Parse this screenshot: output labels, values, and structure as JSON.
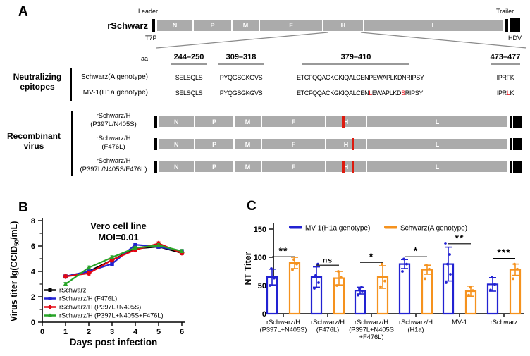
{
  "panel_labels": {
    "a": "A",
    "b": "B",
    "c": "C"
  },
  "colors": {
    "genome_gray": "#ABABAB",
    "mutation_red": "#DD1A0E",
    "epitope_red": "#E8000B",
    "series_black": "#000000",
    "series_blue": "#2222D2",
    "series_red": "#E30613",
    "series_green": "#28A428",
    "bar_blue": "#2222D2",
    "bar_orange": "#F5921E"
  },
  "genome_map": {
    "virus_label": "rSchwarz",
    "leader": "Leader",
    "t7p": "T7P",
    "trailer": "Trailer",
    "hdv": "HDV",
    "segments": [
      "N",
      "P",
      "M",
      "F",
      "H",
      "L"
    ]
  },
  "epitopes": {
    "section_lines": [
      "Neutralizing",
      "epitopes"
    ],
    "aa": "aa",
    "positions": [
      "244–250",
      "309–318",
      "379–410",
      "473–477"
    ],
    "rows": [
      {
        "name": "Schwarz(A genotype)",
        "seqs": [
          [
            {
              "t": "SELSQLS",
              "c": "#000000"
            }
          ],
          [
            {
              "t": "PYQGSGKGVS",
              "c": "#000000"
            }
          ],
          [
            {
              "t": "ETCFQQACKGKIQALCENPEWAPLKDNRIPSY",
              "c": "#000000"
            }
          ],
          [
            {
              "t": "IPRFK",
              "c": "#000000"
            }
          ]
        ]
      },
      {
        "name": "MV-1(H1a genotype)",
        "seqs": [
          [
            {
              "t": "SELSQLS",
              "c": "#000000"
            }
          ],
          [
            {
              "t": "PYQGSGKGVS",
              "c": "#000000"
            }
          ],
          [
            {
              "t": "ETCFQQACKGKIQALCEN",
              "c": "#000000"
            },
            {
              "t": "L",
              "c": "#E8000B"
            },
            {
              "t": "EWAPLKD",
              "c": "#000000"
            },
            {
              "t": "S",
              "c": "#E8000B"
            },
            {
              "t": "RIPSY",
              "c": "#000000"
            }
          ],
          [
            {
              "t": "IPR",
              "c": "#000000"
            },
            {
              "t": "L",
              "c": "#E8000B"
            },
            {
              "t": "K",
              "c": "#000000"
            }
          ]
        ]
      }
    ]
  },
  "recombinant": {
    "section_lines": [
      "Recombinant",
      "virus"
    ],
    "rows": [
      {
        "label_lines": [
          "rSchwarz/H",
          "(P397L/N405S)"
        ],
        "h_marks": [
          0.4
        ]
      },
      {
        "label_lines": [
          "rSchwarz/H",
          "(F476L)"
        ],
        "h_marks": [
          0.64
        ]
      },
      {
        "label_lines": [
          "rSchwarz/H",
          "(P397L/N405S/F476L)"
        ],
        "h_marks": [
          0.4,
          0.64
        ]
      }
    ]
  },
  "chart_data": [
    {
      "id": "growth_curve",
      "type": "line",
      "title_lines": [
        "Vero cell line",
        "MOI=0.01"
      ],
      "xlabel": "Days post infection",
      "ylabel_pre": "Virus titer lg(CCID",
      "ylabel_sub": "50",
      "ylabel_post": "/mL)",
      "x": [
        1,
        2,
        3,
        4,
        5,
        6
      ],
      "xlim": [
        0,
        6
      ],
      "ylim": [
        0,
        8
      ],
      "xticks": [
        0,
        1,
        2,
        3,
        4,
        5,
        6
      ],
      "yticks": [
        0,
        2,
        4,
        6,
        8
      ],
      "yminor": [
        1,
        3,
        5,
        7
      ],
      "error": 0.13,
      "series": [
        {
          "name": "rSchwarz",
          "color": "#000000",
          "marker": "square",
          "values": [
            3.6,
            4.0,
            4.9,
            5.8,
            5.95,
            5.45
          ]
        },
        {
          "name": "rSchwarz/H (F476L)",
          "color": "#2222D2",
          "marker": "square",
          "values": [
            3.6,
            4.0,
            4.6,
            6.1,
            5.95,
            5.6
          ]
        },
        {
          "name": "rSchwarz/H (P397L+N405S)",
          "color": "#E30613",
          "marker": "diamond",
          "values": [
            3.6,
            3.85,
            4.9,
            5.7,
            6.2,
            5.45
          ]
        },
        {
          "name": "rSchwarz/H (P397L+N405S+F476L)",
          "color": "#28A428",
          "marker": "triangle",
          "values": [
            3.0,
            4.3,
            5.1,
            5.85,
            6.05,
            5.6
          ]
        }
      ]
    },
    {
      "id": "nt_titer",
      "type": "grouped_bar_scatter",
      "ylabel": "NT Titer",
      "ylim": [
        0,
        150
      ],
      "yticks": [
        0,
        50,
        100,
        150
      ],
      "legend_position": "top",
      "categories": [
        [
          "rSchwarz/H",
          "(P397L+N405S)"
        ],
        [
          "rSchwarz/H",
          "(F476L)"
        ],
        [
          "rSchwarz/H",
          "(P397L+N405S",
          "+F476L)"
        ],
        [
          "rSchwarz/H",
          "(H1a)"
        ],
        [
          "MV-1"
        ],
        [
          "rSchwarz"
        ]
      ],
      "significance": [
        "**",
        "ns",
        "*",
        "*",
        "**",
        "***"
      ],
      "significance_y": [
        101,
        86,
        91,
        101,
        124,
        98
      ],
      "series": [
        {
          "name": "MV-1(H1a genotype)",
          "color": "#2222D2",
          "means": [
            65,
            65,
            41,
            88,
            88,
            52
          ],
          "errors": [
            14,
            18,
            6,
            8,
            30,
            12
          ],
          "dots": [
            [
              50,
              63,
              80
            ],
            [
              45,
              55,
              68,
              88
            ],
            [
              33,
              40,
              44,
              47
            ],
            [
              75,
              88,
              97
            ],
            [
              55,
              70,
              88,
              105,
              125
            ],
            [
              42,
              52,
              65
            ]
          ]
        },
        {
          "name": "Schwarz(A genotype)",
          "color": "#F5921E",
          "means": [
            90,
            63,
            65,
            78,
            40,
            78
          ],
          "errors": [
            10,
            12,
            20,
            8,
            9,
            10
          ],
          "dots": [
            [
              78,
              88,
              96
            ],
            [
              50,
              64,
              75
            ],
            [
              48,
              58,
              88
            ],
            [
              62,
              79,
              86
            ],
            [
              33,
              41,
              47
            ],
            [
              62,
              79,
              88
            ]
          ]
        }
      ]
    }
  ]
}
